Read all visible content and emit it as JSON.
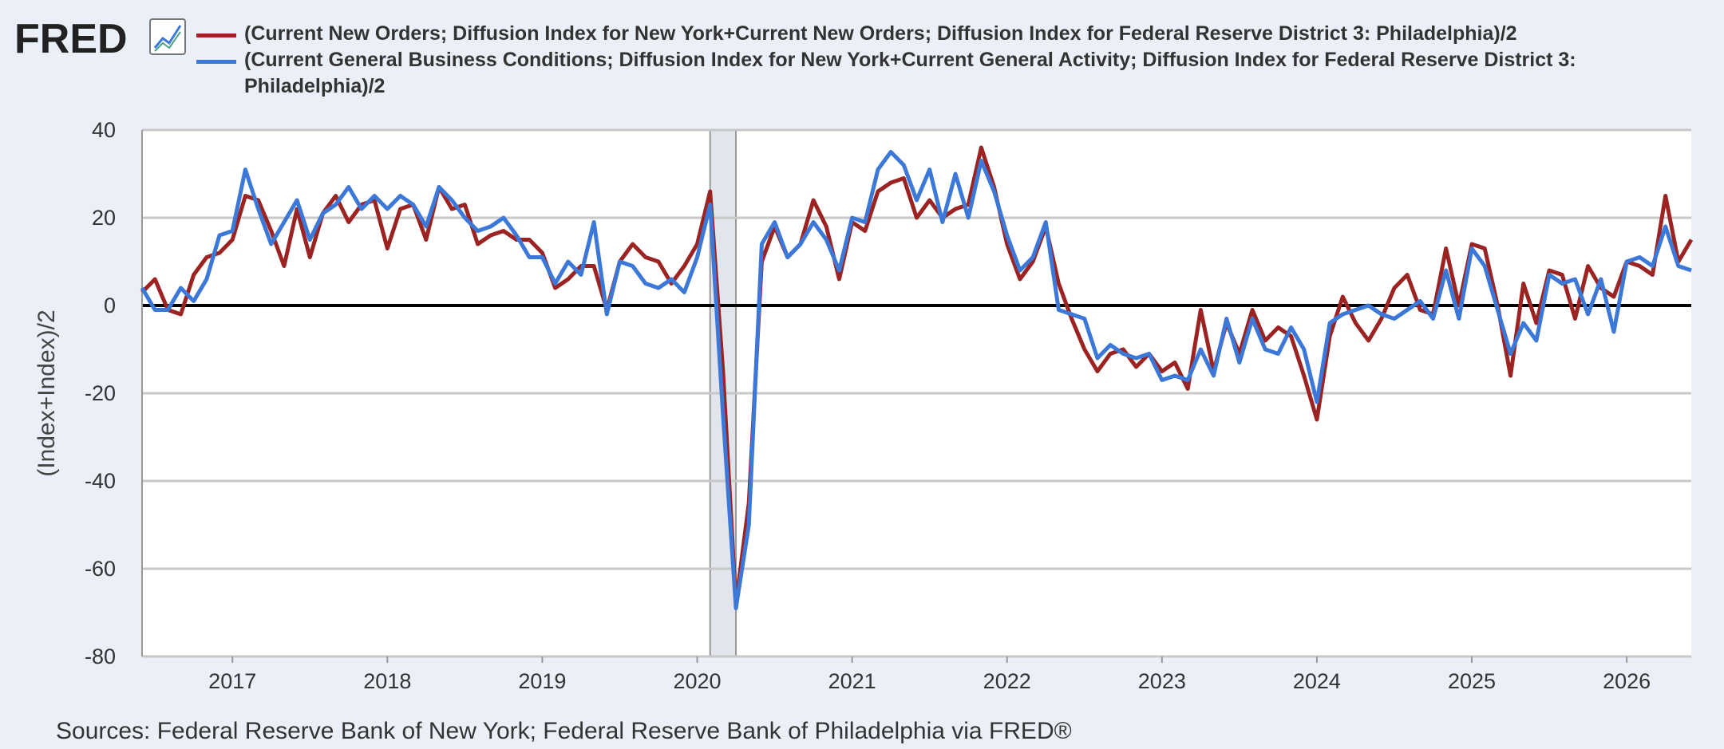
{
  "brand": "FRED",
  "chart_data": {
    "type": "line",
    "y_label": "(Index+Index)/2",
    "source": "Sources: Federal Reserve Bank of New York; Federal Reserve Bank of Philadelphia via FRED®",
    "x": [
      "2016-06",
      "2016-07",
      "2016-08",
      "2016-09",
      "2016-10",
      "2016-11",
      "2016-12",
      "2017-01",
      "2017-02",
      "2017-03",
      "2017-04",
      "2017-05",
      "2017-06",
      "2017-07",
      "2017-08",
      "2017-09",
      "2017-10",
      "2017-11",
      "2017-12",
      "2018-01",
      "2018-02",
      "2018-03",
      "2018-04",
      "2018-05",
      "2018-06",
      "2018-07",
      "2018-08",
      "2018-09",
      "2018-10",
      "2018-11",
      "2018-12",
      "2019-01",
      "2019-02",
      "2019-03",
      "2019-04",
      "2019-05",
      "2019-06",
      "2019-07",
      "2019-08",
      "2019-09",
      "2019-10",
      "2019-11",
      "2019-12",
      "2020-01",
      "2020-02",
      "2020-03",
      "2020-04",
      "2020-05",
      "2020-06",
      "2020-07",
      "2020-08",
      "2020-09",
      "2020-10",
      "2020-11",
      "2020-12",
      "2021-01",
      "2021-02",
      "2021-03",
      "2021-04",
      "2021-05",
      "2021-06",
      "2021-07",
      "2021-08",
      "2021-09",
      "2021-10",
      "2021-11",
      "2021-12",
      "2022-01",
      "2022-02",
      "2022-03",
      "2022-04",
      "2022-05",
      "2022-06",
      "2022-07",
      "2022-08",
      "2022-09",
      "2022-10",
      "2022-11",
      "2022-12",
      "2023-01",
      "2023-02",
      "2023-03",
      "2023-04",
      "2023-05",
      "2023-06",
      "2023-07",
      "2023-08",
      "2023-09",
      "2023-10",
      "2023-11",
      "2023-12",
      "2024-01",
      "2024-02",
      "2024-03",
      "2024-04",
      "2024-05",
      "2024-06",
      "2024-07",
      "2024-08",
      "2024-09",
      "2024-10",
      "2024-11",
      "2024-12",
      "2025-01",
      "2025-02",
      "2025-03",
      "2025-04",
      "2025-05",
      "2025-06",
      "2025-07",
      "2025-08",
      "2025-09",
      "2025-10",
      "2025-11",
      "2025-12",
      "2026-01",
      "2026-02",
      "2026-03",
      "2026-04",
      "2026-05",
      "2026-06"
    ],
    "series": [
      {
        "name": "(Current New Orders; Diffusion Index for New York+Current New Orders; Diffusion Index for Federal Reserve District 3: Philadelphia)/2",
        "color": "#9b2423",
        "values": [
          3,
          6,
          -1,
          -2,
          7,
          11,
          12,
          15,
          25,
          24,
          17,
          9,
          22,
          11,
          21,
          25,
          19,
          23,
          24,
          13,
          22,
          23,
          15,
          27,
          22,
          23,
          14,
          16,
          17,
          15,
          15,
          12,
          4,
          6,
          9,
          9,
          -1,
          10,
          14,
          11,
          10,
          5,
          9,
          14,
          26,
          -15,
          -68,
          -45,
          10,
          18,
          11,
          14,
          24,
          18,
          6,
          19,
          17,
          26,
          28,
          29,
          20,
          24,
          20,
          22,
          23,
          36,
          27,
          14,
          6,
          10,
          18,
          5,
          -3,
          -10,
          -15,
          -11,
          -10,
          -14,
          -11,
          -15,
          -13,
          -19,
          -1,
          -15,
          -4,
          -11,
          -1,
          -8,
          -5,
          -7,
          -16,
          -26,
          -7,
          2,
          -4,
          -8,
          -3,
          4,
          7,
          -1,
          -2,
          13,
          0,
          14,
          13,
          0,
          -16,
          5,
          -4,
          8,
          7,
          -3,
          9,
          4,
          2,
          10,
          9,
          7,
          25,
          10,
          15
        ]
      },
      {
        "name": "(Current General Business Conditions; Diffusion Index for New York+Current General Activity; Diffusion Index for Federal Reserve District 3: Philadelphia)/2",
        "color": "#3b78d8",
        "values": [
          4,
          -1,
          -1,
          4,
          1,
          6,
          16,
          17,
          31,
          22,
          14,
          19,
          24,
          15,
          21,
          23,
          27,
          22,
          25,
          22,
          25,
          23,
          18,
          27,
          24,
          20,
          17,
          18,
          20,
          16,
          11,
          11,
          5,
          10,
          7,
          19,
          -2,
          10,
          9,
          5,
          4,
          6,
          3,
          11,
          23,
          -25,
          -69,
          -50,
          14,
          19,
          11,
          14,
          19,
          15,
          8,
          20,
          19,
          31,
          35,
          32,
          24,
          31,
          19,
          30,
          20,
          33,
          26,
          16,
          8,
          11,
          19,
          -1,
          -2,
          -3,
          -12,
          -9,
          -11,
          -12,
          -11,
          -17,
          -16,
          -17,
          -10,
          -16,
          -3,
          -13,
          -3,
          -10,
          -11,
          -5,
          -10,
          -22,
          -4,
          -2,
          -1,
          0,
          -2,
          -3,
          -1,
          1,
          -3,
          8,
          -3,
          13,
          9,
          -1,
          -11,
          -4,
          -8,
          7,
          5,
          6,
          -2,
          6,
          -6,
          10,
          11,
          9,
          18,
          9,
          8
        ]
      }
    ],
    "shading": [
      {
        "start": "2020-02",
        "end": "2020-04"
      }
    ],
    "xlim": [
      "2016-06",
      "2026-06"
    ],
    "xticks": [
      2017,
      2018,
      2019,
      2020,
      2021,
      2022,
      2023,
      2024,
      2025,
      2026
    ],
    "ylim": [
      -80,
      40
    ],
    "yticks": [
      -80,
      -60,
      -40,
      -20,
      0,
      20,
      40
    ],
    "grid": true
  }
}
